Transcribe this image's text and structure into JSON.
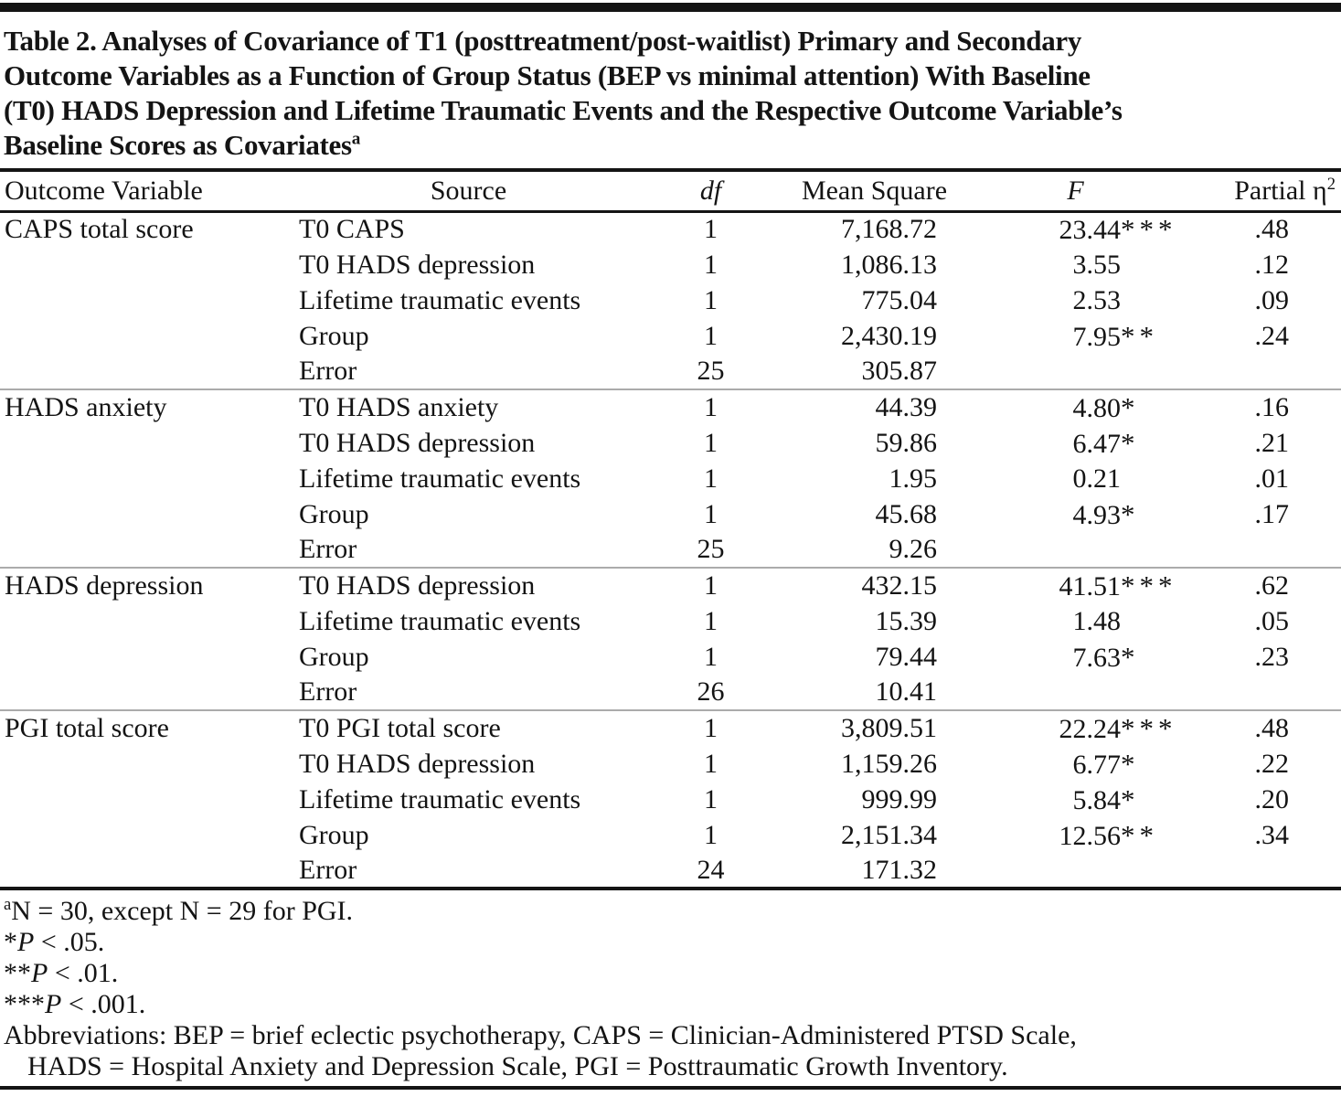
{
  "colors": {
    "text": "#141414",
    "rule": "#141414",
    "group_divider": "#ababab",
    "background": "#ffffff"
  },
  "title": {
    "lines": [
      "Table 2. Analyses of Covariance of T1 (posttreatment/post-waitlist) Primary and Secondary",
      "Outcome Variables as a Function of Group Status (BEP vs minimal attention) With Baseline",
      "(T0) HADS Depression and Lifetime Traumatic Events and the Respective Outcome Variable’s",
      "Baseline Scores as Covariates"
    ],
    "footnote_marker": "a"
  },
  "header": {
    "outcome": "Outcome Variable",
    "source": "Source",
    "df": "df",
    "mean_square": "Mean Square",
    "f": "F",
    "partial_base": "Partial η",
    "partial_sup": "2"
  },
  "groups": [
    {
      "outcome": "CAPS total score",
      "rows": [
        {
          "source": "T0 CAPS",
          "df": "1",
          "mean_square": "7,168.72",
          "f": "23.44",
          "f_stars": "***",
          "partial_eta": ".48"
        },
        {
          "source": "T0 HADS depression",
          "df": "1",
          "mean_square": "1,086.13",
          "f": "3.55",
          "f_stars": "",
          "partial_eta": ".12"
        },
        {
          "source": "Lifetime traumatic events",
          "df": "1",
          "mean_square": "775.04",
          "f": "2.53",
          "f_stars": "",
          "partial_eta": ".09"
        },
        {
          "source": "Group",
          "df": "1",
          "mean_square": "2,430.19",
          "f": "7.95",
          "f_stars": "**",
          "partial_eta": ".24"
        },
        {
          "source": "Error",
          "df": "25",
          "mean_square": "305.87",
          "f": "",
          "f_stars": "",
          "partial_eta": ""
        }
      ]
    },
    {
      "outcome": "HADS anxiety",
      "rows": [
        {
          "source": "T0 HADS anxiety",
          "df": "1",
          "mean_square": "44.39",
          "f": "4.80",
          "f_stars": "*",
          "partial_eta": ".16"
        },
        {
          "source": "T0 HADS depression",
          "df": "1",
          "mean_square": "59.86",
          "f": "6.47",
          "f_stars": "*",
          "partial_eta": ".21"
        },
        {
          "source": "Lifetime traumatic events",
          "df": "1",
          "mean_square": "1.95",
          "f": "0.21",
          "f_stars": "",
          "partial_eta": ".01"
        },
        {
          "source": "Group",
          "df": "1",
          "mean_square": "45.68",
          "f": "4.93",
          "f_stars": "*",
          "partial_eta": ".17"
        },
        {
          "source": "Error",
          "df": "25",
          "mean_square": "9.26",
          "f": "",
          "f_stars": "",
          "partial_eta": ""
        }
      ]
    },
    {
      "outcome": "HADS depression",
      "rows": [
        {
          "source": "T0 HADS depression",
          "df": "1",
          "mean_square": "432.15",
          "f": "41.51",
          "f_stars": "***",
          "partial_eta": ".62"
        },
        {
          "source": "Lifetime traumatic events",
          "df": "1",
          "mean_square": "15.39",
          "f": "1.48",
          "f_stars": "",
          "partial_eta": ".05"
        },
        {
          "source": "Group",
          "df": "1",
          "mean_square": "79.44",
          "f": "7.63",
          "f_stars": "*",
          "partial_eta": ".23"
        },
        {
          "source": "Error",
          "df": "26",
          "mean_square": "10.41",
          "f": "",
          "f_stars": "",
          "partial_eta": ""
        }
      ]
    },
    {
      "outcome": "PGI total score",
      "rows": [
        {
          "source": "T0 PGI total score",
          "df": "1",
          "mean_square": "3,809.51",
          "f": "22.24",
          "f_stars": "***",
          "partial_eta": ".48"
        },
        {
          "source": "T0 HADS depression",
          "df": "1",
          "mean_square": "1,159.26",
          "f": "6.77",
          "f_stars": "*",
          "partial_eta": ".22"
        },
        {
          "source": "Lifetime traumatic events",
          "df": "1",
          "mean_square": "999.99",
          "f": "5.84",
          "f_stars": "*",
          "partial_eta": ".20"
        },
        {
          "source": "Group",
          "df": "1",
          "mean_square": "2,151.34",
          "f": "12.56",
          "f_stars": "**",
          "partial_eta": ".34"
        },
        {
          "source": "Error",
          "df": "24",
          "mean_square": "171.32",
          "f": "",
          "f_stars": "",
          "partial_eta": ""
        }
      ]
    }
  ],
  "footnotes": [
    {
      "sup": "a",
      "prefix": "",
      "italic": "",
      "text": "N = 30, except N = 29 for PGI.",
      "indent": false
    },
    {
      "sup": "",
      "prefix": "*",
      "italic": "P",
      "text": " < .05.",
      "indent": false
    },
    {
      "sup": "",
      "prefix": "**",
      "italic": "P",
      "text": " < .01.",
      "indent": false
    },
    {
      "sup": "",
      "prefix": "***",
      "italic": "P",
      "text": " < .001.",
      "indent": false
    },
    {
      "sup": "",
      "prefix": "",
      "italic": "",
      "text": "Abbreviations: BEP = brief eclectic psychotherapy, CAPS = Clinician-Administered PTSD Scale,",
      "indent": false
    },
    {
      "sup": "",
      "prefix": "",
      "italic": "",
      "text": "HADS = Hospital Anxiety and Depression Scale, PGI = Posttraumatic Growth Inventory.",
      "indent": true
    }
  ]
}
